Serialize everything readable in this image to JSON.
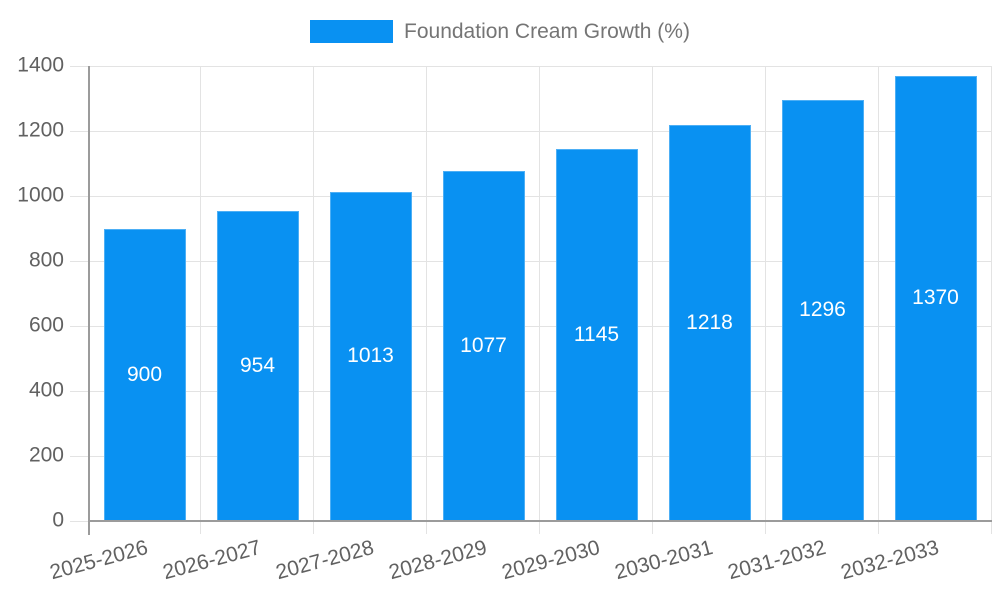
{
  "legend": {
    "label": "Foundation Cream Growth (%)"
  },
  "chart_data": {
    "type": "bar",
    "title": "Foundation Cream Growth (%)",
    "categories": [
      "2025-2026",
      "2026-2027",
      "2027-2028",
      "2028-2029",
      "2029-2030",
      "2030-2031",
      "2031-2032",
      "2032-2033"
    ],
    "values": [
      900,
      954,
      1013,
      1077,
      1145,
      1218,
      1296,
      1370
    ],
    "xlabel": "",
    "ylabel": "",
    "ylim": [
      0,
      1400
    ],
    "yticks": [
      0,
      200,
      400,
      600,
      800,
      1000,
      1200,
      1400
    ],
    "grid": true,
    "legend_position": "top-center",
    "bar_labels_inside": true,
    "colors": {
      "bar": "#0991f2",
      "bar_label": "#ffffff",
      "axis_text": "#616161",
      "legend_text": "#757575",
      "gridline": "#e3e3e3",
      "axis_line": "#9b9b9b",
      "background": "#ffffff"
    }
  }
}
